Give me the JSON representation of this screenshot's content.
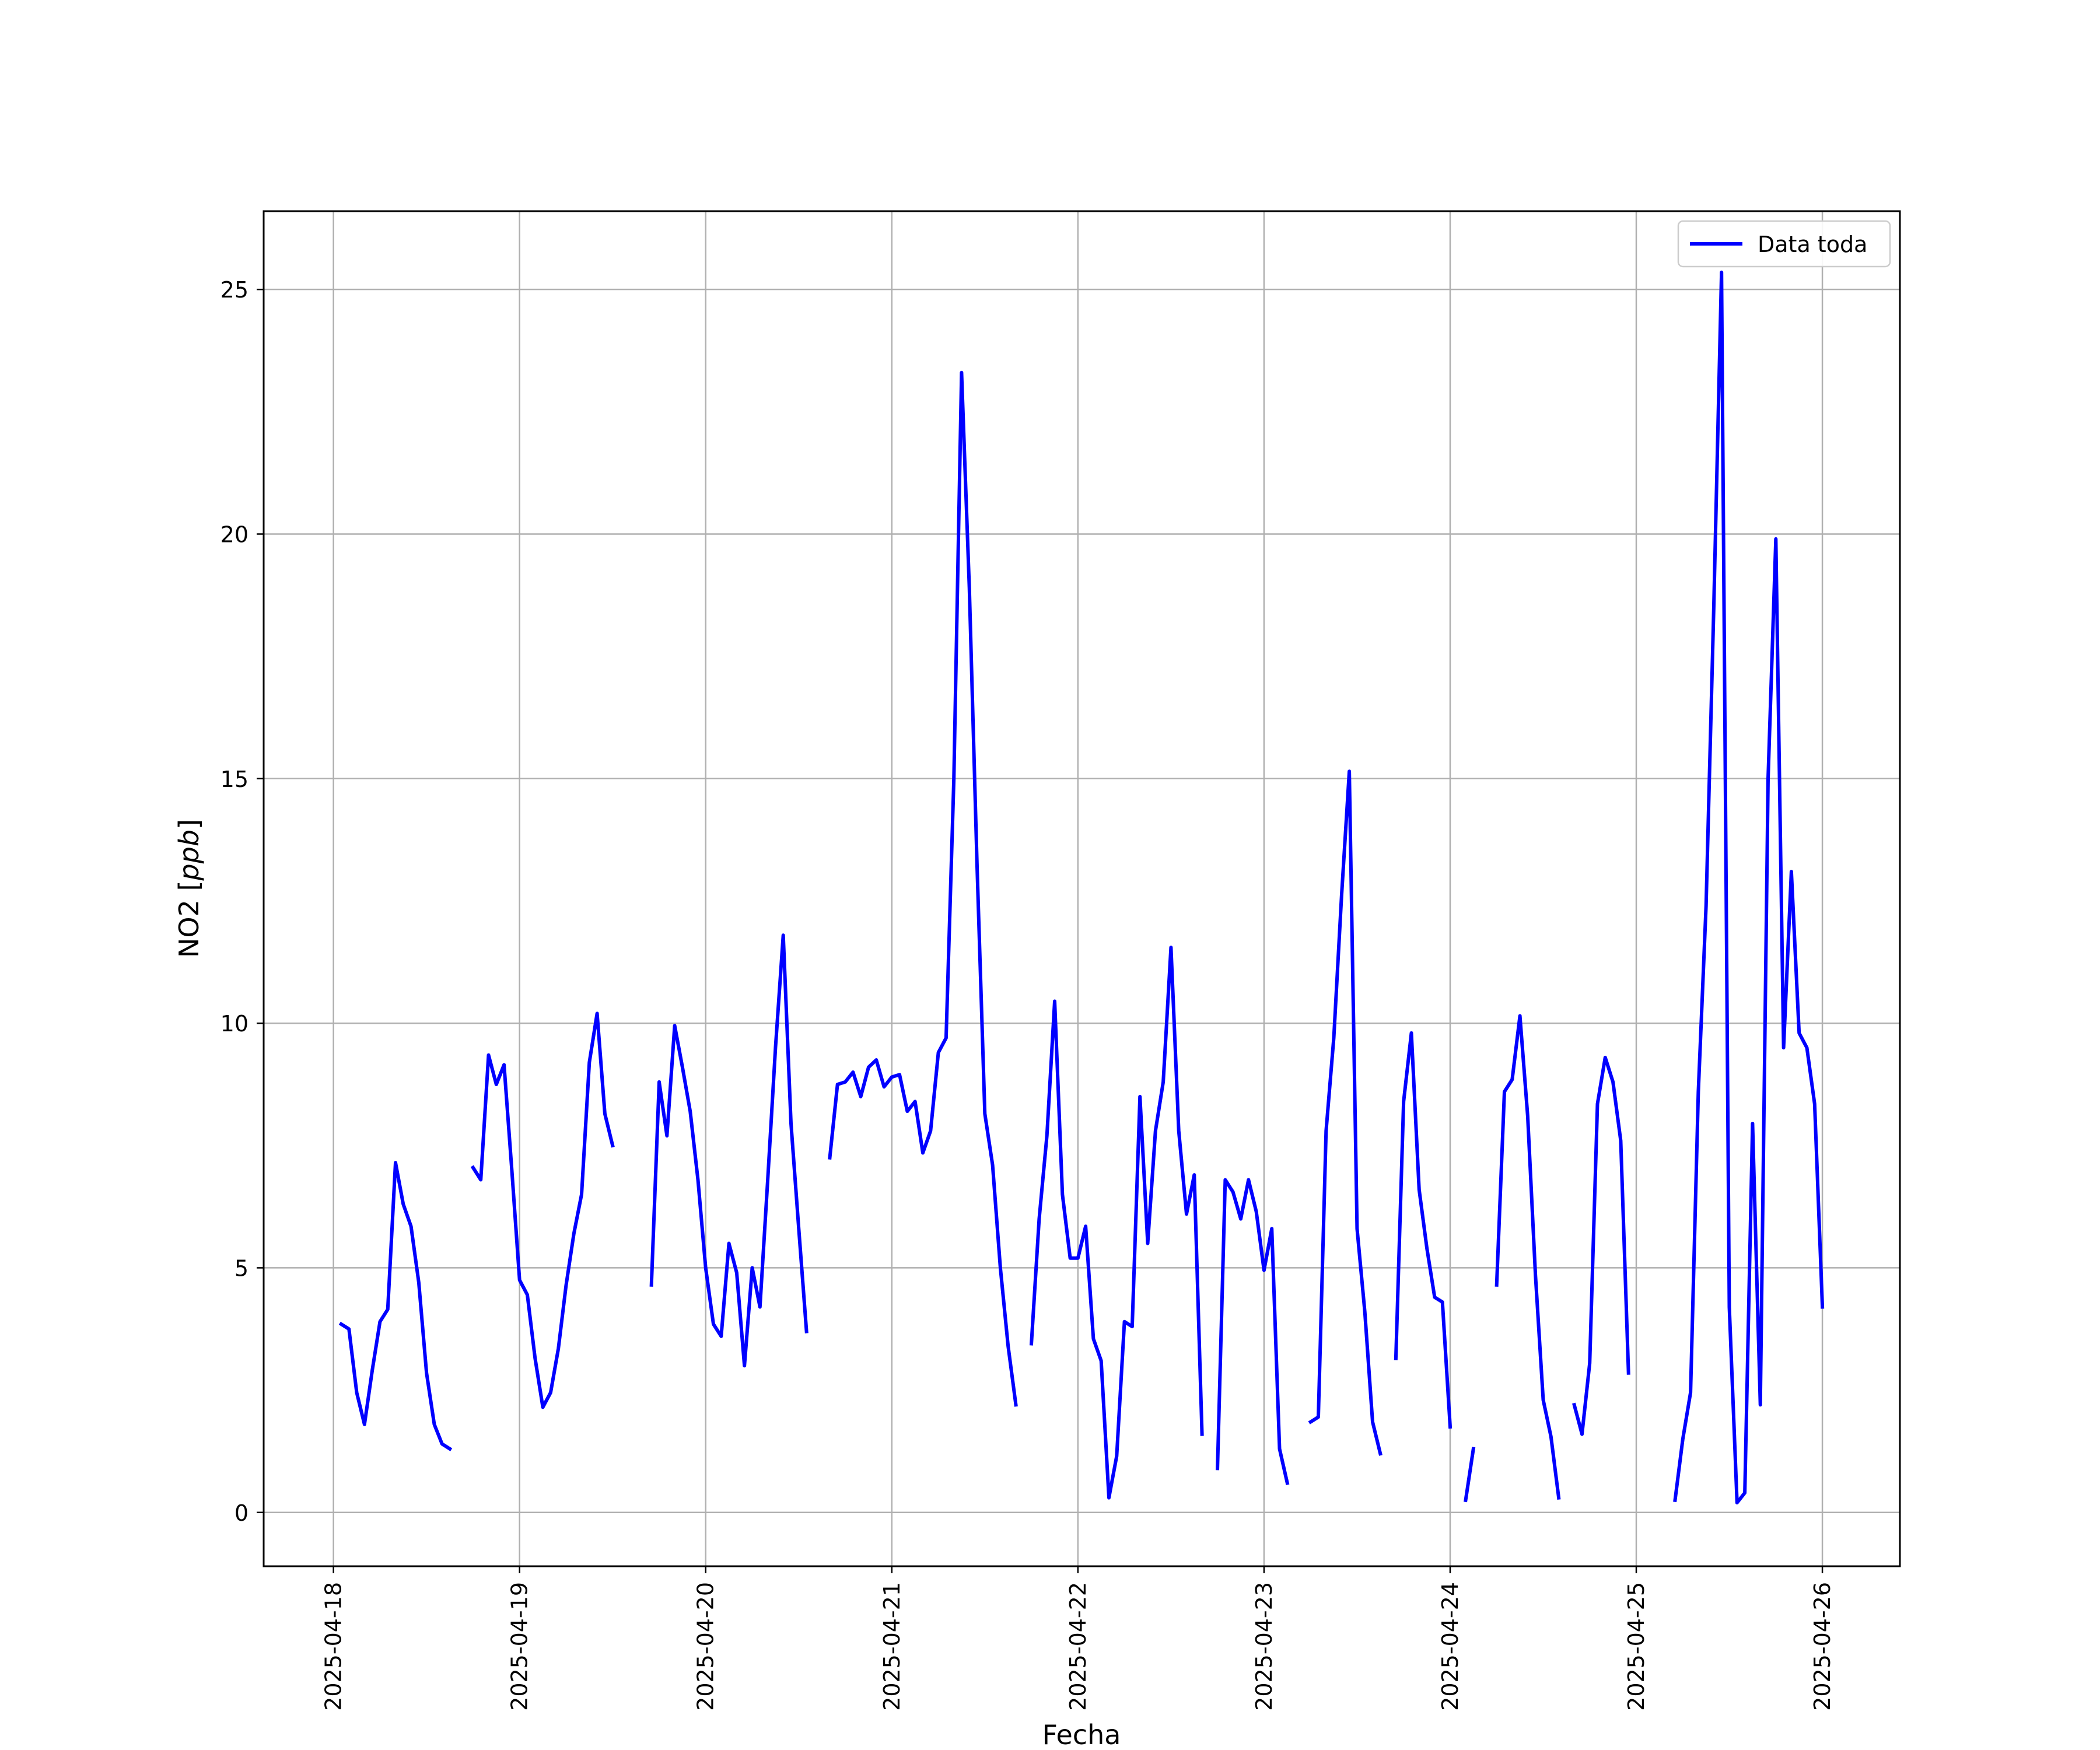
{
  "colors": {
    "line": "#0000ff",
    "grid": "#b0b0b0",
    "axes": "#000000"
  },
  "chart_data": {
    "type": "line",
    "xlabel": "Fecha",
    "ylabel_main": "NO2 [",
    "ylabel_unit": "ppb",
    "ylabel_close": "]",
    "x_axis_type": "date",
    "xlim": [
      "2025-04-17T15:00",
      "2025-04-26T10:00"
    ],
    "ylim": [
      -1.1,
      26.6
    ],
    "x_ticks": [
      "2025-04-18",
      "2025-04-19",
      "2025-04-20",
      "2025-04-21",
      "2025-04-22",
      "2025-04-23",
      "2025-04-24",
      "2025-04-25",
      "2025-04-26"
    ],
    "y_ticks": [
      0,
      5,
      10,
      15,
      20,
      25
    ],
    "y_tick_labels": [
      "0",
      "5",
      "10",
      "15",
      "20",
      "25"
    ],
    "grid": true,
    "legend": {
      "position": "top-right",
      "entries": [
        "Data toda"
      ]
    },
    "series": [
      {
        "name": "Data toda",
        "segments": [
          [
            [
              "2025-04-18T01:00",
              3.85
            ],
            [
              "2025-04-18T02:00",
              3.75
            ],
            [
              "2025-04-18T03:00",
              2.45
            ],
            [
              "2025-04-18T04:00",
              1.8
            ],
            [
              "2025-04-18T05:00",
              2.9
            ],
            [
              "2025-04-18T06:00",
              3.9
            ],
            [
              "2025-04-18T07:00",
              4.15
            ],
            [
              "2025-04-18T08:00",
              7.15
            ],
            [
              "2025-04-18T09:00",
              6.3
            ],
            [
              "2025-04-18T10:00",
              5.85
            ],
            [
              "2025-04-18T11:00",
              4.7
            ],
            [
              "2025-04-18T12:00",
              2.85
            ],
            [
              "2025-04-18T13:00",
              1.8
            ],
            [
              "2025-04-18T14:00",
              1.4
            ],
            [
              "2025-04-18T15:00",
              1.3
            ]
          ],
          [
            [
              "2025-04-18T18:00",
              7.05
            ],
            [
              "2025-04-18T19:00",
              6.8
            ],
            [
              "2025-04-18T20:00",
              9.35
            ],
            [
              "2025-04-18T21:00",
              8.75
            ],
            [
              "2025-04-18T22:00",
              9.15
            ],
            [
              "2025-04-18T23:00",
              7.0
            ],
            [
              "2025-04-19T00:00",
              4.75
            ],
            [
              "2025-04-19T01:00",
              4.45
            ],
            [
              "2025-04-19T02:00",
              3.15
            ],
            [
              "2025-04-19T03:00",
              2.15
            ],
            [
              "2025-04-19T04:00",
              2.45
            ],
            [
              "2025-04-19T05:00",
              3.35
            ],
            [
              "2025-04-19T06:00",
              4.65
            ],
            [
              "2025-04-19T07:00",
              5.7
            ],
            [
              "2025-04-19T08:00",
              6.5
            ],
            [
              "2025-04-19T09:00",
              9.2
            ],
            [
              "2025-04-19T10:00",
              10.2
            ],
            [
              "2025-04-19T11:00",
              8.15
            ],
            [
              "2025-04-19T12:00",
              7.5
            ]
          ],
          [
            [
              "2025-04-19T17:00",
              4.65
            ],
            [
              "2025-04-19T18:00",
              8.8
            ],
            [
              "2025-04-19T19:00",
              7.7
            ],
            [
              "2025-04-19T20:00",
              9.95
            ],
            [
              "2025-04-19T21:00",
              9.1
            ],
            [
              "2025-04-19T22:00",
              8.2
            ],
            [
              "2025-04-19T23:00",
              6.8
            ],
            [
              "2025-04-20T00:00",
              5.0
            ],
            [
              "2025-04-20T01:00",
              3.85
            ],
            [
              "2025-04-20T02:00",
              3.6
            ],
            [
              "2025-04-20T03:00",
              5.5
            ],
            [
              "2025-04-20T04:00",
              4.9
            ],
            [
              "2025-04-20T05:00",
              3.0
            ],
            [
              "2025-04-20T06:00",
              5.0
            ],
            [
              "2025-04-20T07:00",
              4.2
            ],
            [
              "2025-04-20T08:00",
              6.8
            ],
            [
              "2025-04-20T09:00",
              9.5
            ],
            [
              "2025-04-20T10:00",
              11.8
            ],
            [
              "2025-04-20T11:00",
              7.95
            ],
            [
              "2025-04-20T12:00",
              5.8
            ],
            [
              "2025-04-20T13:00",
              3.7
            ]
          ],
          [
            [
              "2025-04-20T16:00",
              7.25
            ],
            [
              "2025-04-20T17:00",
              8.75
            ],
            [
              "2025-04-20T18:00",
              8.8
            ],
            [
              "2025-04-20T19:00",
              9.0
            ],
            [
              "2025-04-20T20:00",
              8.5
            ],
            [
              "2025-04-20T21:00",
              9.1
            ],
            [
              "2025-04-20T22:00",
              9.25
            ],
            [
              "2025-04-20T23:00",
              8.7
            ],
            [
              "2025-04-21T00:00",
              8.9
            ],
            [
              "2025-04-21T01:00",
              8.95
            ],
            [
              "2025-04-21T02:00",
              8.2
            ],
            [
              "2025-04-21T03:00",
              8.4
            ],
            [
              "2025-04-21T04:00",
              7.35
            ],
            [
              "2025-04-21T05:00",
              7.8
            ],
            [
              "2025-04-21T06:00",
              9.4
            ],
            [
              "2025-04-21T07:00",
              9.7
            ],
            [
              "2025-04-21T08:00",
              15.0
            ],
            [
              "2025-04-21T09:00",
              23.3
            ],
            [
              "2025-04-21T10:00",
              18.9
            ],
            [
              "2025-04-21T11:00",
              13.2
            ],
            [
              "2025-04-21T12:00",
              8.15
            ],
            [
              "2025-04-21T13:00",
              7.1
            ],
            [
              "2025-04-21T14:00",
              5.0
            ],
            [
              "2025-04-21T15:00",
              3.4
            ],
            [
              "2025-04-21T16:00",
              2.2
            ]
          ],
          [
            [
              "2025-04-21T18:00",
              3.45
            ],
            [
              "2025-04-21T19:00",
              6.0
            ],
            [
              "2025-04-21T20:00",
              7.7
            ],
            [
              "2025-04-21T21:00",
              10.45
            ],
            [
              "2025-04-21T22:00",
              6.5
            ],
            [
              "2025-04-21T23:00",
              5.2
            ],
            [
              "2025-04-22T00:00",
              5.2
            ],
            [
              "2025-04-22T01:00",
              5.85
            ],
            [
              "2025-04-22T02:00",
              3.55
            ],
            [
              "2025-04-22T03:00",
              3.1
            ],
            [
              "2025-04-22T04:00",
              0.3
            ],
            [
              "2025-04-22T05:00",
              1.15
            ],
            [
              "2025-04-22T06:00",
              3.9
            ],
            [
              "2025-04-22T07:00",
              3.8
            ],
            [
              "2025-04-22T08:00",
              8.5
            ],
            [
              "2025-04-22T09:00",
              5.5
            ],
            [
              "2025-04-22T10:00",
              7.8
            ],
            [
              "2025-04-22T11:00",
              8.8
            ],
            [
              "2025-04-22T12:00",
              11.55
            ],
            [
              "2025-04-22T13:00",
              7.8
            ],
            [
              "2025-04-22T14:00",
              6.1
            ],
            [
              "2025-04-22T15:00",
              6.9
            ],
            [
              "2025-04-22T16:00",
              1.6
            ]
          ],
          [
            [
              "2025-04-22T18:00",
              0.9
            ],
            [
              "2025-04-22T19:00",
              6.8
            ],
            [
              "2025-04-22T20:00",
              6.55
            ],
            [
              "2025-04-22T21:00",
              6.0
            ],
            [
              "2025-04-22T22:00",
              6.8
            ],
            [
              "2025-04-22T23:00",
              6.15
            ],
            [
              "2025-04-23T00:00",
              4.95
            ],
            [
              "2025-04-23T01:00",
              5.8
            ],
            [
              "2025-04-23T02:00",
              1.3
            ],
            [
              "2025-04-23T03:00",
              0.6
            ]
          ],
          [
            [
              "2025-04-23T06:00",
              1.85
            ],
            [
              "2025-04-23T07:00",
              1.95
            ],
            [
              "2025-04-23T08:00",
              7.8
            ],
            [
              "2025-04-23T09:00",
              9.7
            ],
            [
              "2025-04-23T10:00",
              12.6
            ],
            [
              "2025-04-23T11:00",
              15.15
            ],
            [
              "2025-04-23T12:00",
              5.8
            ],
            [
              "2025-04-23T13:00",
              4.1
            ],
            [
              "2025-04-23T14:00",
              1.85
            ],
            [
              "2025-04-23T15:00",
              1.2
            ]
          ],
          [
            [
              "2025-04-23T17:00",
              3.15
            ],
            [
              "2025-04-23T18:00",
              8.4
            ],
            [
              "2025-04-23T19:00",
              9.8
            ],
            [
              "2025-04-23T20:00",
              6.6
            ],
            [
              "2025-04-23T21:00",
              5.4
            ],
            [
              "2025-04-23T22:00",
              4.4
            ],
            [
              "2025-04-23T23:00",
              4.3
            ],
            [
              "2025-04-24T00:00",
              1.75
            ]
          ],
          [
            [
              "2025-04-24T02:00",
              0.25
            ],
            [
              "2025-04-24T03:00",
              1.3
            ]
          ],
          [
            [
              "2025-04-24T06:00",
              4.65
            ],
            [
              "2025-04-24T07:00",
              8.6
            ],
            [
              "2025-04-24T08:00",
              8.85
            ],
            [
              "2025-04-24T09:00",
              10.15
            ],
            [
              "2025-04-24T10:00",
              8.1
            ],
            [
              "2025-04-24T11:00",
              4.85
            ],
            [
              "2025-04-24T12:00",
              2.3
            ],
            [
              "2025-04-24T13:00",
              1.55
            ],
            [
              "2025-04-24T14:00",
              0.3
            ]
          ],
          [
            [
              "2025-04-24T16:00",
              2.2
            ],
            [
              "2025-04-24T17:00",
              1.6
            ],
            [
              "2025-04-24T18:00",
              3.05
            ],
            [
              "2025-04-24T19:00",
              8.35
            ],
            [
              "2025-04-24T20:00",
              9.3
            ],
            [
              "2025-04-24T21:00",
              8.8
            ],
            [
              "2025-04-24T22:00",
              7.6
            ],
            [
              "2025-04-24T23:00",
              2.85
            ]
          ],
          [
            [
              "2025-04-25T05:00",
              0.25
            ],
            [
              "2025-04-25T06:00",
              1.5
            ],
            [
              "2025-04-25T07:00",
              2.45
            ],
            [
              "2025-04-25T08:00",
              8.6
            ],
            [
              "2025-04-25T09:00",
              12.4
            ],
            [
              "2025-04-25T10:00",
              18.5
            ],
            [
              "2025-04-25T11:00",
              25.35
            ],
            [
              "2025-04-25T12:00",
              4.2
            ],
            [
              "2025-04-25T13:00",
              0.2
            ],
            [
              "2025-04-25T14:00",
              0.4
            ],
            [
              "2025-04-25T15:00",
              7.95
            ],
            [
              "2025-04-25T16:00",
              2.2
            ],
            [
              "2025-04-25T17:00",
              15.0
            ],
            [
              "2025-04-25T18:00",
              19.9
            ],
            [
              "2025-04-25T19:00",
              9.5
            ],
            [
              "2025-04-25T20:00",
              13.1
            ],
            [
              "2025-04-25T21:00",
              9.8
            ],
            [
              "2025-04-25T22:00",
              9.5
            ],
            [
              "2025-04-25T23:00",
              8.35
            ],
            [
              "2025-04-26T00:00",
              4.2
            ]
          ]
        ]
      }
    ]
  }
}
